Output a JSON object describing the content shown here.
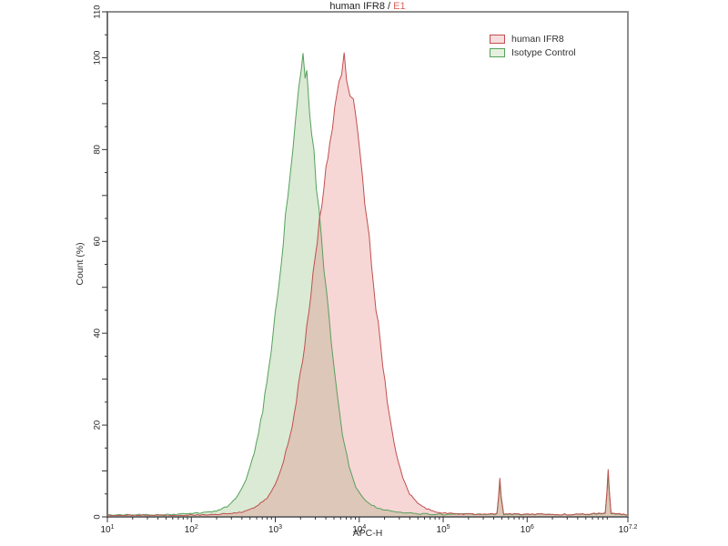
{
  "title": {
    "main": "human IFR8 / ",
    "accent": "E1",
    "accent_color": "#e0635a",
    "main_color": "#222222"
  },
  "legend": {
    "items": [
      {
        "label": "human IFR8",
        "stroke": "#c0504d",
        "fill": "#f7dddd"
      },
      {
        "label": "Isotype Control",
        "stroke": "#57a05c",
        "fill": "#e4f0dd"
      }
    ]
  },
  "axes": {
    "x": {
      "label": "APC-H",
      "scale": "log10",
      "log_min": 1,
      "log_max": 7.2,
      "major_ticks": [
        {
          "base": "10",
          "exp": "1",
          "log": 1
        },
        {
          "base": "10",
          "exp": "2",
          "log": 2
        },
        {
          "base": "10",
          "exp": "3",
          "log": 3
        },
        {
          "base": "10",
          "exp": "4",
          "log": 4
        },
        {
          "base": "10",
          "exp": "5",
          "log": 5
        },
        {
          "base": "10",
          "exp": "6",
          "log": 6
        },
        {
          "base": "10",
          "exp": "7.2",
          "log": 7.2
        }
      ]
    },
    "y": {
      "label": "Count (%)",
      "min": 0,
      "max": 110,
      "labeled_ticks": [
        0,
        20,
        40,
        60,
        80,
        100,
        110
      ],
      "major_step": 10,
      "minor_step": 5
    }
  },
  "chart_data": {
    "type": "area",
    "description": "Flow cytometry overlay histogram; points are [log10(APC-H), Count %]",
    "title": "human IFR8 / E1",
    "xlabel": "APC-H",
    "ylabel": "Count (%)",
    "x_range_log10": [
      1,
      7.2
    ],
    "ylim": [
      0,
      110
    ],
    "legend_position": "top-right",
    "series": [
      {
        "name": "Isotype Control",
        "stroke": "#57a05c",
        "fill": "rgba(140,190,120,0.32)",
        "peak_x": 2100,
        "peak_y": 100,
        "points": [
          [
            1.0,
            0.4
          ],
          [
            1.3,
            0.5
          ],
          [
            1.6,
            0.4
          ],
          [
            1.9,
            0.6
          ],
          [
            2.1,
            0.8
          ],
          [
            2.3,
            1.2
          ],
          [
            2.45,
            2.5
          ],
          [
            2.55,
            4.5
          ],
          [
            2.65,
            8
          ],
          [
            2.75,
            14
          ],
          [
            2.85,
            23
          ],
          [
            2.95,
            36
          ],
          [
            3.05,
            52
          ],
          [
            3.12,
            65
          ],
          [
            3.18,
            76
          ],
          [
            3.24,
            86
          ],
          [
            3.28,
            93
          ],
          [
            3.31,
            97
          ],
          [
            3.33,
            100
          ],
          [
            3.355,
            95
          ],
          [
            3.375,
            97
          ],
          [
            3.41,
            89
          ],
          [
            3.46,
            79
          ],
          [
            3.52,
            66
          ],
          [
            3.58,
            54
          ],
          [
            3.64,
            43
          ],
          [
            3.72,
            29
          ],
          [
            3.8,
            18
          ],
          [
            3.88,
            11
          ],
          [
            3.96,
            6.5
          ],
          [
            4.05,
            4
          ],
          [
            4.15,
            2.5
          ],
          [
            4.3,
            1.5
          ],
          [
            4.5,
            0.9
          ],
          [
            4.7,
            0.7
          ],
          [
            5.0,
            0.5
          ],
          [
            5.3,
            0.6
          ],
          [
            5.55,
            0.5
          ],
          [
            5.64,
            0.6
          ],
          [
            5.66,
            4
          ],
          [
            5.675,
            7.5
          ],
          [
            5.69,
            4
          ],
          [
            5.72,
            0.6
          ],
          [
            5.9,
            0.5
          ],
          [
            6.2,
            0.6
          ],
          [
            6.5,
            0.5
          ],
          [
            6.8,
            0.6
          ],
          [
            6.93,
            0.7
          ],
          [
            6.95,
            5
          ],
          [
            6.965,
            9.5
          ],
          [
            6.98,
            5
          ],
          [
            7.0,
            0.7
          ],
          [
            7.1,
            0.5
          ],
          [
            7.2,
            0.5
          ]
        ]
      },
      {
        "name": "human IFR8",
        "stroke": "#c0504d",
        "fill": "rgba(230,120,120,0.30)",
        "peak_x": 6600,
        "peak_y": 100,
        "points": [
          [
            1.0,
            0.3
          ],
          [
            1.4,
            0.4
          ],
          [
            1.8,
            0.3
          ],
          [
            2.1,
            0.4
          ],
          [
            2.4,
            0.6
          ],
          [
            2.6,
            1
          ],
          [
            2.75,
            2
          ],
          [
            2.9,
            4
          ],
          [
            3.0,
            7
          ],
          [
            3.1,
            12
          ],
          [
            3.2,
            20
          ],
          [
            3.3,
            31
          ],
          [
            3.4,
            45
          ],
          [
            3.5,
            60
          ],
          [
            3.58,
            72
          ],
          [
            3.65,
            82
          ],
          [
            3.71,
            89
          ],
          [
            3.76,
            94
          ],
          [
            3.79,
            97
          ],
          [
            3.82,
            100
          ],
          [
            3.85,
            96
          ],
          [
            3.89,
            92
          ],
          [
            3.93,
            90
          ],
          [
            3.98,
            84
          ],
          [
            4.04,
            74
          ],
          [
            4.12,
            60
          ],
          [
            4.2,
            46
          ],
          [
            4.28,
            33
          ],
          [
            4.36,
            22
          ],
          [
            4.44,
            14
          ],
          [
            4.52,
            8.5
          ],
          [
            4.6,
            5
          ],
          [
            4.7,
            3
          ],
          [
            4.8,
            1.8
          ],
          [
            4.95,
            1
          ],
          [
            5.1,
            0.7
          ],
          [
            5.35,
            0.6
          ],
          [
            5.55,
            0.6
          ],
          [
            5.64,
            0.7
          ],
          [
            5.66,
            4.5
          ],
          [
            5.675,
            8.5
          ],
          [
            5.69,
            4.5
          ],
          [
            5.72,
            0.7
          ],
          [
            5.9,
            0.6
          ],
          [
            6.2,
            0.6
          ],
          [
            6.5,
            0.5
          ],
          [
            6.8,
            0.7
          ],
          [
            6.93,
            0.8
          ],
          [
            6.95,
            5.5
          ],
          [
            6.965,
            10.5
          ],
          [
            6.98,
            5.5
          ],
          [
            7.0,
            0.8
          ],
          [
            7.1,
            0.6
          ],
          [
            7.2,
            0.5
          ]
        ]
      }
    ]
  },
  "layout_colors": {
    "plot_border": "#8f8f8f",
    "axis_line": "#555555",
    "tick": "#333333",
    "tick_label": "#222222"
  }
}
